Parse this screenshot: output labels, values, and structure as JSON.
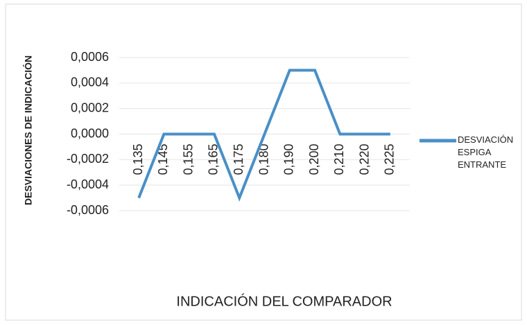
{
  "chart_data": {
    "type": "line",
    "categories": [
      "0,135",
      "0,145",
      "0,155",
      "0,165",
      "0,175",
      "0,180",
      "0,190",
      "0,200",
      "0,210",
      "0,220",
      "0,225"
    ],
    "series": [
      {
        "name": "DESVIACIÓN ESPIGA ENTRANTE",
        "color": "#4a8fc7",
        "values": [
          -0.0005,
          0,
          0,
          0,
          -0.0005,
          0,
          0.0005,
          0.0005,
          0,
          0,
          0
        ]
      }
    ],
    "x_label": "INDICACIÓN DEL COMPARADOR",
    "y_label": "DESVIACIONES DE INDICACIÓN",
    "ylim": [
      -0.0006,
      0.0006
    ],
    "yticks": [
      {
        "value": 0.0006,
        "label": "0,0006"
      },
      {
        "value": 0.0004,
        "label": "0,0004"
      },
      {
        "value": 0.0002,
        "label": "0,0002"
      },
      {
        "value": 0,
        "label": "0,0000"
      },
      {
        "value": -0.0002,
        "label": "-0,0002"
      },
      {
        "value": -0.0004,
        "label": "-0,0004"
      },
      {
        "value": -0.0006,
        "label": "-0,0006"
      }
    ],
    "grid": true,
    "legend": "right"
  }
}
